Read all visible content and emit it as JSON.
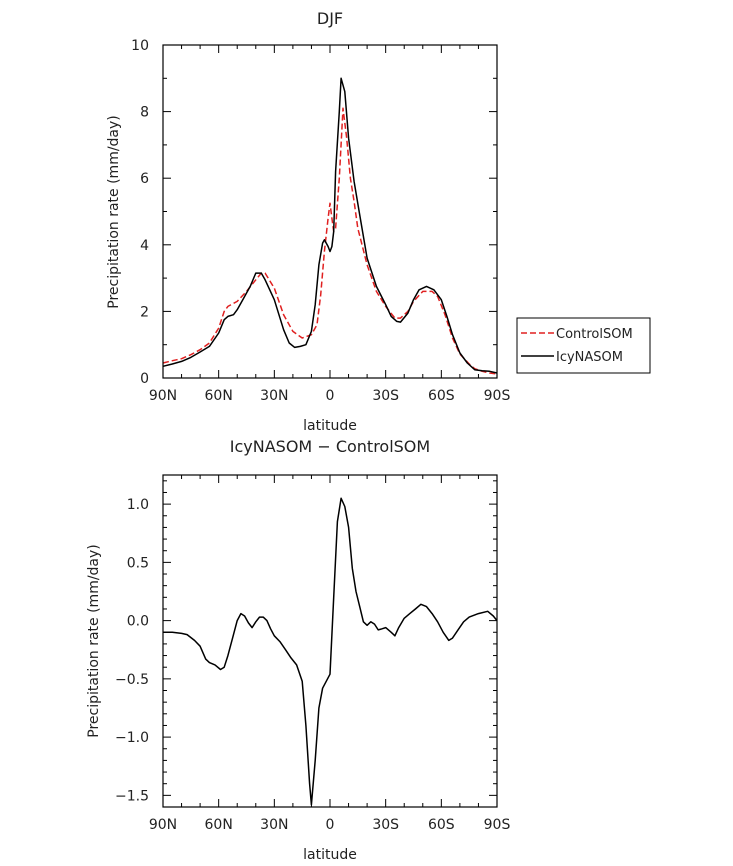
{
  "chart_data": [
    {
      "type": "line",
      "title": "DJF",
      "xlabel": "latitude",
      "ylabel": "Precipitation rate (mm/day)",
      "xlim": [
        90,
        -90
      ],
      "ylim": [
        0,
        10
      ],
      "x_ticks": [
        {
          "value": 90,
          "label": "90N"
        },
        {
          "value": 60,
          "label": "60N"
        },
        {
          "value": 30,
          "label": "30N"
        },
        {
          "value": 0,
          "label": "0"
        },
        {
          "value": -30,
          "label": "30S"
        },
        {
          "value": -60,
          "label": "60S"
        },
        {
          "value": -90,
          "label": "90S"
        }
      ],
      "y_ticks": [
        {
          "value": 0,
          "label": "0"
        },
        {
          "value": 2,
          "label": "2"
        },
        {
          "value": 4,
          "label": "4"
        },
        {
          "value": 6,
          "label": "6"
        },
        {
          "value": 8,
          "label": "8"
        },
        {
          "value": 10,
          "label": "10"
        }
      ],
      "legend": "right",
      "series": [
        {
          "name": "ControlSOM",
          "color": "#e02020",
          "dash": "dashed",
          "points": [
            [
              90,
              0.45
            ],
            [
              85,
              0.52
            ],
            [
              80,
              0.58
            ],
            [
              75,
              0.7
            ],
            [
              70,
              0.85
            ],
            [
              65,
              1.05
            ],
            [
              60,
              1.5
            ],
            [
              57,
              2.0
            ],
            [
              55,
              2.15
            ],
            [
              50,
              2.3
            ],
            [
              45,
              2.6
            ],
            [
              40,
              2.95
            ],
            [
              37,
              3.15
            ],
            [
              35,
              3.15
            ],
            [
              30,
              2.7
            ],
            [
              25,
              1.9
            ],
            [
              20,
              1.4
            ],
            [
              15,
              1.2
            ],
            [
              10,
              1.3
            ],
            [
              7,
              1.6
            ],
            [
              5,
              2.5
            ],
            [
              3,
              3.8
            ],
            [
              1,
              4.8
            ],
            [
              0,
              5.25
            ],
            [
              -1,
              4.8
            ],
            [
              -2,
              4.4
            ],
            [
              -3,
              4.5
            ],
            [
              -5,
              6.0
            ],
            [
              -7,
              8.1
            ],
            [
              -9,
              7.2
            ],
            [
              -11,
              6.0
            ],
            [
              -13,
              5.3
            ],
            [
              -15,
              4.5
            ],
            [
              -20,
              3.4
            ],
            [
              -25,
              2.6
            ],
            [
              -30,
              2.15
            ],
            [
              -35,
              1.8
            ],
            [
              -38,
              1.8
            ],
            [
              -42,
              2.0
            ],
            [
              -45,
              2.3
            ],
            [
              -50,
              2.6
            ],
            [
              -55,
              2.6
            ],
            [
              -58,
              2.45
            ],
            [
              -62,
              1.9
            ],
            [
              -66,
              1.2
            ],
            [
              -70,
              0.72
            ],
            [
              -75,
              0.42
            ],
            [
              -78,
              0.28
            ],
            [
              -82,
              0.2
            ],
            [
              -86,
              0.15
            ],
            [
              -90,
              0.12
            ]
          ]
        },
        {
          "name": "IcyNASOM",
          "color": "#000000",
          "dash": "solid",
          "points": [
            [
              90,
              0.35
            ],
            [
              85,
              0.42
            ],
            [
              80,
              0.5
            ],
            [
              75,
              0.62
            ],
            [
              70,
              0.78
            ],
            [
              65,
              0.95
            ],
            [
              60,
              1.35
            ],
            [
              57,
              1.75
            ],
            [
              55,
              1.85
            ],
            [
              52,
              1.9
            ],
            [
              50,
              2.05
            ],
            [
              47,
              2.35
            ],
            [
              43,
              2.75
            ],
            [
              40,
              3.15
            ],
            [
              37,
              3.15
            ],
            [
              35,
              2.95
            ],
            [
              30,
              2.35
            ],
            [
              25,
              1.45
            ],
            [
              22,
              1.05
            ],
            [
              19,
              0.92
            ],
            [
              16,
              0.95
            ],
            [
              13,
              1.0
            ],
            [
              10,
              1.4
            ],
            [
              8,
              2.2
            ],
            [
              6,
              3.4
            ],
            [
              4,
              4.05
            ],
            [
              3,
              4.15
            ],
            [
              1,
              3.95
            ],
            [
              0,
              3.8
            ],
            [
              -1,
              3.95
            ],
            [
              -2,
              4.4
            ],
            [
              -3,
              6.2
            ],
            [
              -5,
              8.0
            ],
            [
              -6,
              9.0
            ],
            [
              -8,
              8.6
            ],
            [
              -10,
              7.2
            ],
            [
              -13,
              5.9
            ],
            [
              -16,
              4.9
            ],
            [
              -20,
              3.6
            ],
            [
              -25,
              2.75
            ],
            [
              -30,
              2.2
            ],
            [
              -33,
              1.85
            ],
            [
              -36,
              1.7
            ],
            [
              -38,
              1.68
            ],
            [
              -42,
              1.95
            ],
            [
              -45,
              2.35
            ],
            [
              -48,
              2.65
            ],
            [
              -52,
              2.75
            ],
            [
              -56,
              2.65
            ],
            [
              -60,
              2.35
            ],
            [
              -63,
              1.85
            ],
            [
              -66,
              1.3
            ],
            [
              -70,
              0.75
            ],
            [
              -74,
              0.45
            ],
            [
              -78,
              0.25
            ],
            [
              -82,
              0.22
            ],
            [
              -86,
              0.2
            ],
            [
              -90,
              0.15
            ]
          ]
        }
      ]
    },
    {
      "type": "line",
      "title": "IcyNASOM − ControlSOM",
      "xlabel": "latitude",
      "ylabel": "Precipitation rate (mm/day)",
      "xlim": [
        90,
        -90
      ],
      "ylim": [
        -1.6,
        1.25
      ],
      "x_ticks": [
        {
          "value": 90,
          "label": "90N"
        },
        {
          "value": 60,
          "label": "60N"
        },
        {
          "value": 30,
          "label": "30N"
        },
        {
          "value": 0,
          "label": "0"
        },
        {
          "value": -30,
          "label": "30S"
        },
        {
          "value": -60,
          "label": "60S"
        },
        {
          "value": -90,
          "label": "90S"
        }
      ],
      "y_ticks": [
        {
          "value": -1.5,
          "label": "−1.5"
        },
        {
          "value": -1.0,
          "label": "−1.0"
        },
        {
          "value": -0.5,
          "label": "−0.5"
        },
        {
          "value": 0.0,
          "label": "0.0"
        },
        {
          "value": 0.5,
          "label": "0.5"
        },
        {
          "value": 1.0,
          "label": "1.0"
        }
      ],
      "series": [
        {
          "color": "#000000",
          "dash": "solid",
          "points": [
            [
              90,
              -0.1
            ],
            [
              85,
              -0.1
            ],
            [
              80,
              -0.11
            ],
            [
              77,
              -0.12
            ],
            [
              73,
              -0.17
            ],
            [
              70,
              -0.22
            ],
            [
              67,
              -0.33
            ],
            [
              65,
              -0.36
            ],
            [
              62,
              -0.38
            ],
            [
              59,
              -0.42
            ],
            [
              57,
              -0.4
            ],
            [
              55,
              -0.3
            ],
            [
              52,
              -0.12
            ],
            [
              50,
              0.0
            ],
            [
              48,
              0.06
            ],
            [
              46,
              0.04
            ],
            [
              44,
              -0.02
            ],
            [
              42,
              -0.06
            ],
            [
              40,
              -0.01
            ],
            [
              38,
              0.03
            ],
            [
              36,
              0.03
            ],
            [
              34,
              0.0
            ],
            [
              32,
              -0.07
            ],
            [
              30,
              -0.13
            ],
            [
              27,
              -0.18
            ],
            [
              24,
              -0.25
            ],
            [
              21,
              -0.32
            ],
            [
              18,
              -0.38
            ],
            [
              15,
              -0.52
            ],
            [
              13,
              -0.9
            ],
            [
              11,
              -1.4
            ],
            [
              10,
              -1.58
            ],
            [
              8,
              -1.2
            ],
            [
              6,
              -0.75
            ],
            [
              4,
              -0.58
            ],
            [
              2,
              -0.52
            ],
            [
              0,
              -0.46
            ],
            [
              -2,
              0.2
            ],
            [
              -4,
              0.85
            ],
            [
              -6,
              1.05
            ],
            [
              -8,
              0.98
            ],
            [
              -10,
              0.8
            ],
            [
              -12,
              0.45
            ],
            [
              -14,
              0.25
            ],
            [
              -16,
              0.12
            ],
            [
              -18,
              -0.01
            ],
            [
              -20,
              -0.04
            ],
            [
              -22,
              -0.01
            ],
            [
              -24,
              -0.03
            ],
            [
              -26,
              -0.08
            ],
            [
              -28,
              -0.07
            ],
            [
              -30,
              -0.06
            ],
            [
              -33,
              -0.1
            ],
            [
              -35,
              -0.13
            ],
            [
              -37,
              -0.06
            ],
            [
              -40,
              0.02
            ],
            [
              -43,
              0.06
            ],
            [
              -46,
              0.1
            ],
            [
              -49,
              0.14
            ],
            [
              -52,
              0.12
            ],
            [
              -55,
              0.06
            ],
            [
              -58,
              -0.01
            ],
            [
              -61,
              -0.1
            ],
            [
              -64,
              -0.17
            ],
            [
              -66,
              -0.15
            ],
            [
              -69,
              -0.08
            ],
            [
              -72,
              -0.01
            ],
            [
              -75,
              0.03
            ],
            [
              -80,
              0.06
            ],
            [
              -85,
              0.08
            ],
            [
              -88,
              0.04
            ],
            [
              -90,
              0.0
            ]
          ]
        }
      ]
    }
  ]
}
